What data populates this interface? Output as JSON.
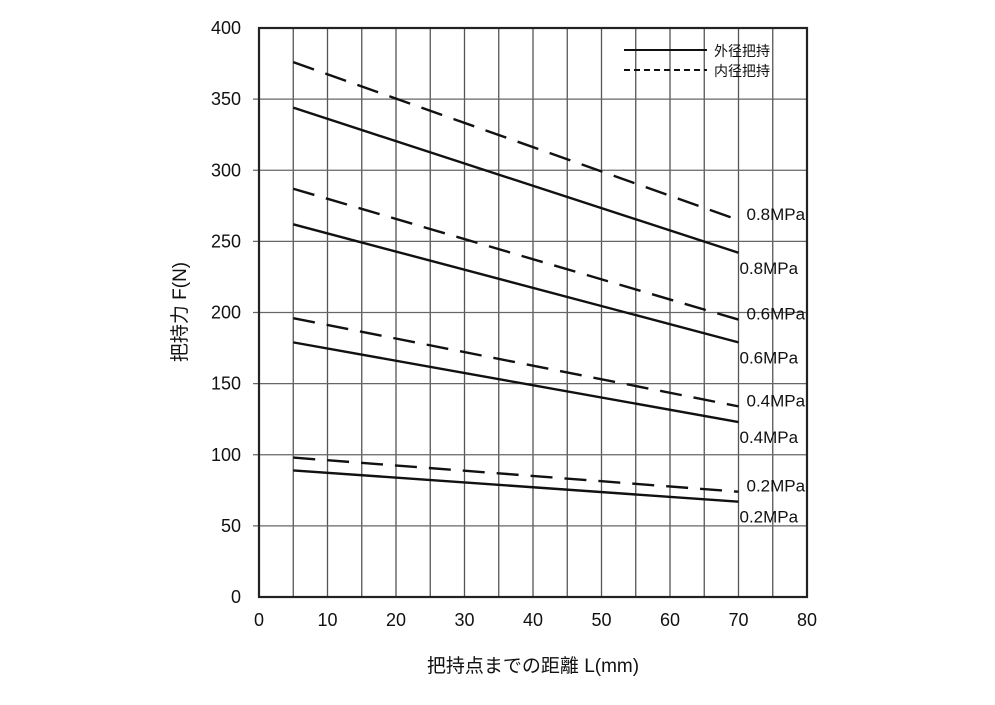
{
  "chart_data": {
    "type": "line",
    "title": "",
    "xlabel": "把持点までの距離  L(mm)",
    "ylabel": "把持力  F(N)",
    "xlim": [
      0,
      80
    ],
    "ylim": [
      0,
      400
    ],
    "xticks": [
      0,
      10,
      20,
      30,
      40,
      50,
      60,
      70,
      80
    ],
    "yticks": [
      0,
      50,
      100,
      150,
      200,
      250,
      300,
      350,
      400
    ],
    "grid": true,
    "legend_position": "top-right",
    "legend": [
      {
        "label": "外径把持",
        "style": "solid"
      },
      {
        "label": "内径把持",
        "style": "dashed"
      }
    ],
    "series": [
      {
        "group": "外径把持",
        "style": "solid",
        "label": "0.8MPa",
        "x": [
          5,
          70
        ],
        "y": [
          344,
          242
        ]
      },
      {
        "group": "内径把持",
        "style": "dashed",
        "label": "0.8MPa",
        "x": [
          5,
          70
        ],
        "y": [
          376,
          265
        ]
      },
      {
        "group": "外径把持",
        "style": "solid",
        "label": "0.6MPa",
        "x": [
          5,
          70
        ],
        "y": [
          262,
          179
        ]
      },
      {
        "group": "内径把持",
        "style": "dashed",
        "label": "0.6MPa",
        "x": [
          5,
          70
        ],
        "y": [
          287,
          195
        ]
      },
      {
        "group": "外径把持",
        "style": "solid",
        "label": "0.4MPa",
        "x": [
          5,
          70
        ],
        "y": [
          179,
          123
        ]
      },
      {
        "group": "内径把持",
        "style": "dashed",
        "label": "0.4MPa",
        "x": [
          5,
          70
        ],
        "y": [
          196,
          134
        ]
      },
      {
        "group": "外径把持",
        "style": "solid",
        "label": "0.2MPa",
        "x": [
          5,
          70
        ],
        "y": [
          89,
          67
        ]
      },
      {
        "group": "内径把持",
        "style": "dashed",
        "label": "0.2MPa",
        "x": [
          5,
          70
        ],
        "y": [
          98,
          74
        ]
      }
    ]
  }
}
